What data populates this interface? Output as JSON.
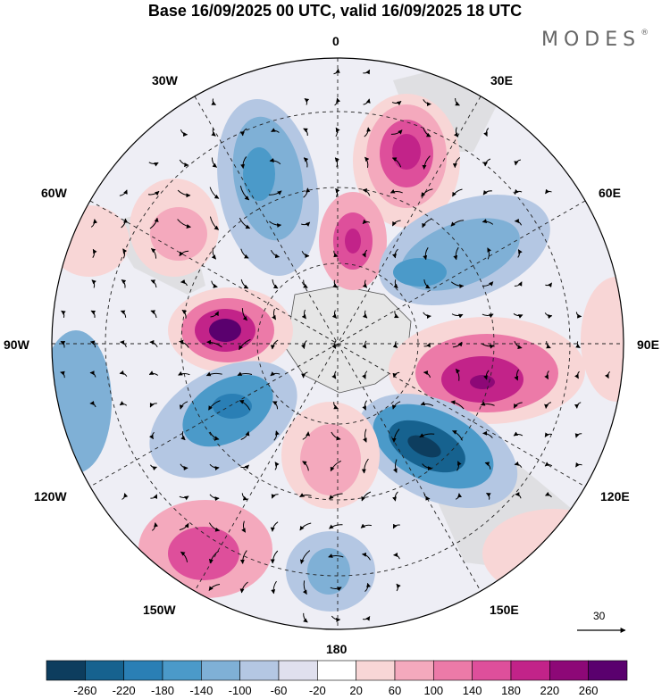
{
  "title": "Base 16/09/2025 00 UTC, valid 16/09/2025 18 UTC",
  "brand": {
    "name": "MODES",
    "mark": "®"
  },
  "longitude_labels": [
    "0",
    "30E",
    "60E",
    "90E",
    "120E",
    "150E",
    "180",
    "150W",
    "120W",
    "90W",
    "60W",
    "30W"
  ],
  "reference_vector": {
    "value": "30"
  },
  "colorbar": {
    "ticks": [
      "-260",
      "-220",
      "-180",
      "-140",
      "-100",
      "-60",
      "-20",
      "20",
      "60",
      "100",
      "140",
      "180",
      "220",
      "260"
    ],
    "colors": [
      "#0d3d5e",
      "#16628f",
      "#2a7fb5",
      "#4b9ac9",
      "#7fb0d6",
      "#b4c7e3",
      "#e0e0ee",
      "#ffffff",
      "#f8d6d6",
      "#f4a9bd",
      "#ec7aa8",
      "#de4f9b",
      "#c22389",
      "#8d0877",
      "#5a006e"
    ]
  },
  "colors": {
    "land": "#d9d9d9",
    "ocean_bg": "#f2f2f4",
    "border": "#000000"
  }
}
